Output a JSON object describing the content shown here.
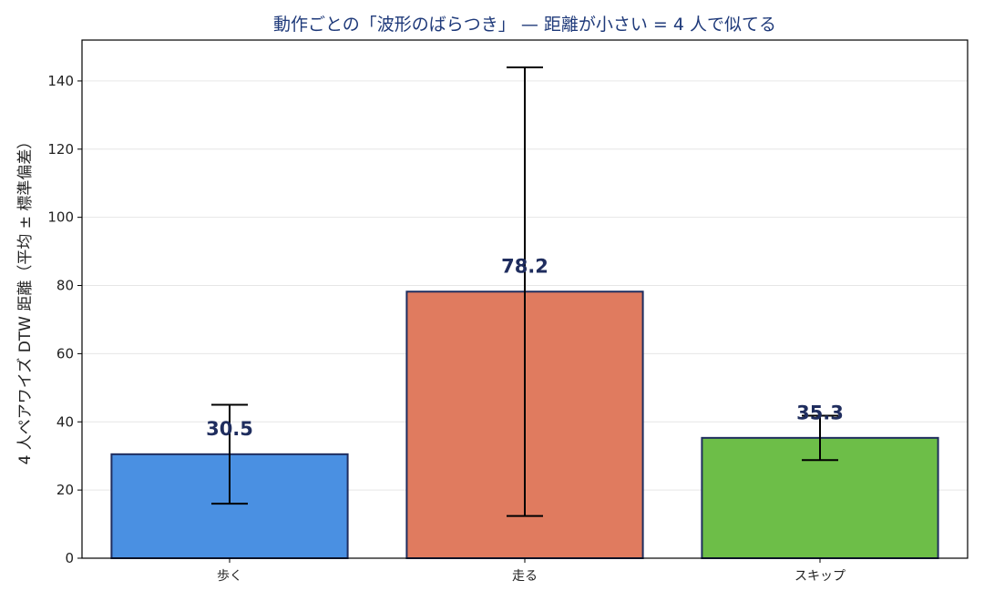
{
  "chart_data": {
    "type": "bar",
    "title": "動作ごとの「波形のばらつき」 — 距離が小さい = 4 人で似てる",
    "xlabel": "",
    "ylabel": "4 人ペアワイズ DTW 距離（平均 ± 標準偏差）",
    "ylim": [
      0,
      152
    ],
    "yticks": [
      0,
      20,
      40,
      60,
      80,
      100,
      120,
      140
    ],
    "grid": true,
    "legend": "none",
    "categories": [
      "歩く",
      "走る",
      "スキップ"
    ],
    "values": [
      30.5,
      78.2,
      35.3
    ],
    "errors": [
      14.5,
      65.8,
      6.5
    ],
    "data_labels": [
      "30.5",
      "78.2",
      "35.3"
    ],
    "colors": [
      "#4a90e2",
      "#e07b5f",
      "#6dbe48"
    ],
    "edge_color": "#1f2d5e",
    "title_color": "#1f3a7a",
    "label_color": "#1f2d5e"
  }
}
